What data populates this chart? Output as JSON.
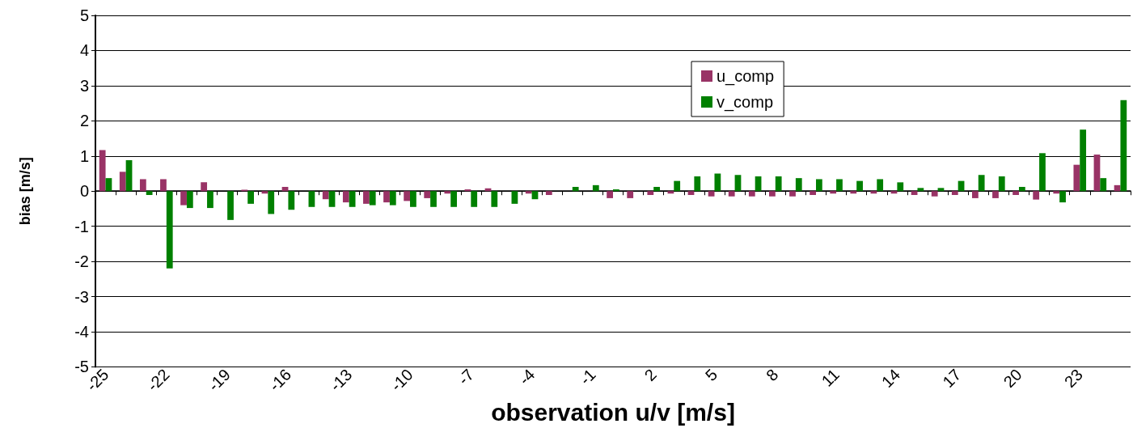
{
  "chart_data": {
    "type": "bar",
    "xlabel": "observation u/v [m/s]",
    "ylabel": "bias [m/s]",
    "categories": [
      "-25",
      null,
      null,
      "-22",
      null,
      null,
      "-19",
      null,
      null,
      "-16",
      null,
      null,
      "-13",
      null,
      null,
      "-10",
      null,
      null,
      "-7",
      null,
      null,
      "-4",
      null,
      null,
      "-1",
      null,
      null,
      "2",
      null,
      null,
      "5",
      null,
      null,
      "8",
      null,
      null,
      "11",
      null,
      null,
      "14",
      null,
      null,
      "17",
      null,
      null,
      "20",
      null,
      null,
      "23",
      null,
      null
    ],
    "series": [
      {
        "name": "u_comp",
        "color": "#993366",
        "values": [
          1.17,
          0.55,
          0.34,
          0.34,
          -0.4,
          0.25,
          0,
          0.04,
          -0.07,
          0.12,
          0,
          -0.23,
          -0.32,
          -0.36,
          -0.32,
          -0.28,
          -0.2,
          -0.07,
          0.05,
          0.08,
          0,
          -0.07,
          -0.11,
          0,
          0,
          -0.2,
          -0.2,
          -0.11,
          -0.07,
          -0.11,
          -0.15,
          -0.15,
          -0.15,
          -0.15,
          -0.15,
          -0.11,
          -0.07,
          -0.07,
          -0.07,
          -0.07,
          -0.11,
          -0.15,
          -0.11,
          -0.2,
          -0.2,
          -0.11,
          -0.24,
          -0.07,
          0.75,
          1.04,
          0.17
        ]
      },
      {
        "name": "v_comp",
        "color": "#008000",
        "values": [
          0.37,
          0.88,
          -0.11,
          -2.2,
          -0.48,
          -0.48,
          -0.82,
          -0.36,
          -0.65,
          -0.53,
          -0.45,
          -0.45,
          -0.45,
          -0.4,
          -0.4,
          -0.45,
          -0.45,
          -0.45,
          -0.45,
          -0.45,
          -0.36,
          -0.23,
          0,
          0.12,
          0.17,
          0.05,
          0,
          0.12,
          0.29,
          0.42,
          0.5,
          0.46,
          0.42,
          0.42,
          0.37,
          0.34,
          0.34,
          0.29,
          0.34,
          0.25,
          0.09,
          0.09,
          0.29,
          0.46,
          0.42,
          0.12,
          1.08,
          -0.32,
          1.75,
          0.37,
          2.59
        ]
      }
    ],
    "ylim": [
      -5,
      5
    ],
    "yticks": [
      -5,
      -4,
      -3,
      -2,
      -1,
      0,
      1,
      2,
      3,
      4,
      5
    ],
    "grid": "y",
    "legend": "top right"
  }
}
